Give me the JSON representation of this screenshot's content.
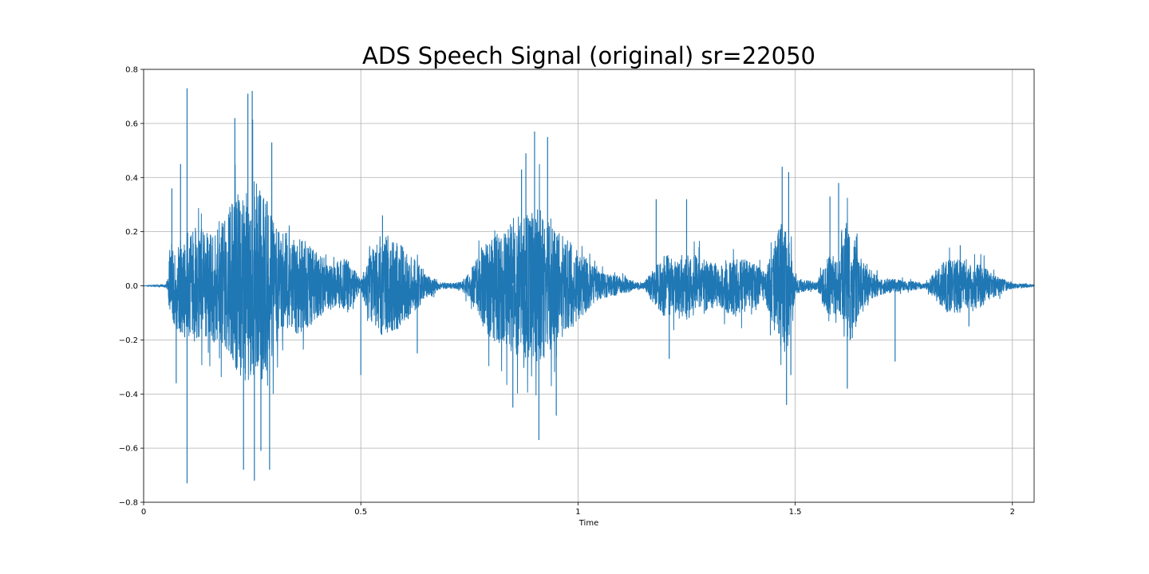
{
  "chart_data": {
    "type": "line",
    "title": "ADS Speech Signal (original) sr=22050",
    "xlabel": "Time",
    "ylabel": "",
    "xlim": [
      0,
      2.05
    ],
    "ylim": [
      -0.8,
      0.8
    ],
    "x_ticks": [
      0,
      0.5,
      1,
      1.5,
      2
    ],
    "x_tick_labels": [
      "0",
      "0.5",
      "1",
      "1.5",
      "2"
    ],
    "y_ticks": [
      -0.8,
      -0.6,
      -0.4,
      -0.2,
      0.0,
      0.2,
      0.4,
      0.6,
      0.8
    ],
    "y_tick_labels": [
      "−0.8",
      "−0.6",
      "−0.4",
      "−0.2",
      "0.0",
      "0.2",
      "0.4",
      "0.6",
      "0.8"
    ],
    "grid": true,
    "color": "#1f77b4",
    "series": [
      {
        "envelope_time": [
          0,
          0.05,
          0.055,
          0.06,
          0.07,
          0.1,
          0.12,
          0.15,
          0.18,
          0.2,
          0.22,
          0.24,
          0.25,
          0.26,
          0.28,
          0.3,
          0.32,
          0.35,
          0.38,
          0.4,
          0.42,
          0.44,
          0.45,
          0.47,
          0.5,
          0.52,
          0.55,
          0.58,
          0.6,
          0.63,
          0.65,
          0.68,
          0.7,
          0.73,
          0.75,
          0.78,
          0.8,
          0.83,
          0.85,
          0.88,
          0.9,
          0.92,
          0.95,
          0.98,
          1.0,
          1.03,
          1.05,
          1.08,
          1.1,
          1.13,
          1.15,
          1.18,
          1.2,
          1.23,
          1.25,
          1.28,
          1.3,
          1.33,
          1.35,
          1.38,
          1.4,
          1.43,
          1.45,
          1.47,
          1.48,
          1.5,
          1.53,
          1.55,
          1.58,
          1.6,
          1.62,
          1.65,
          1.68,
          1.7,
          1.73,
          1.75,
          1.78,
          1.8,
          1.83,
          1.85,
          1.88,
          1.9,
          1.93,
          1.95,
          1.98,
          2.0,
          2.03,
          2.05
        ],
        "envelope_amplitude": [
          0.0,
          0.005,
          0.02,
          0.12,
          0.15,
          0.2,
          0.22,
          0.2,
          0.25,
          0.3,
          0.33,
          0.36,
          0.4,
          0.38,
          0.33,
          0.25,
          0.2,
          0.18,
          0.16,
          0.12,
          0.1,
          0.08,
          0.1,
          0.1,
          0.02,
          0.12,
          0.2,
          0.17,
          0.14,
          0.09,
          0.05,
          0.015,
          0.01,
          0.015,
          0.05,
          0.15,
          0.2,
          0.22,
          0.25,
          0.27,
          0.3,
          0.27,
          0.21,
          0.17,
          0.13,
          0.08,
          0.05,
          0.04,
          0.04,
          0.015,
          0.01,
          0.08,
          0.12,
          0.1,
          0.13,
          0.11,
          0.09,
          0.08,
          0.11,
          0.1,
          0.09,
          0.05,
          0.16,
          0.25,
          0.26,
          0.03,
          0.02,
          0.015,
          0.12,
          0.1,
          0.25,
          0.12,
          0.05,
          0.03,
          0.025,
          0.02,
          0.015,
          0.01,
          0.07,
          0.1,
          0.1,
          0.09,
          0.08,
          0.05,
          0.025,
          0.01,
          0.008,
          0.005
        ],
        "peak_time": [
          0.1,
          0.1,
          0.075,
          0.25,
          0.255,
          0.24,
          0.23,
          0.21,
          0.29,
          0.27,
          0.295,
          0.065,
          0.085,
          0.5,
          0.55,
          0.63,
          0.88,
          0.9,
          0.91,
          0.93,
          0.85,
          0.87,
          0.95,
          1.47,
          1.48,
          1.485,
          1.49,
          1.6,
          1.62,
          1.58,
          1.21,
          1.18,
          1.88,
          1.9,
          1.25,
          1.73
        ],
        "peak_value": [
          0.73,
          -0.73,
          -0.36,
          0.72,
          -0.72,
          0.71,
          -0.68,
          0.62,
          -0.68,
          -0.61,
          0.53,
          0.36,
          0.45,
          -0.33,
          0.26,
          -0.25,
          0.49,
          0.57,
          -0.57,
          0.55,
          -0.45,
          0.43,
          -0.48,
          0.44,
          -0.44,
          0.42,
          -0.33,
          0.38,
          -0.38,
          0.33,
          -0.27,
          0.32,
          0.15,
          -0.15,
          0.32,
          -0.28
        ]
      }
    ]
  }
}
